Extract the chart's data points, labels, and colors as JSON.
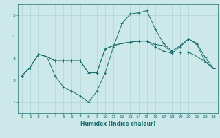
{
  "title": "",
  "xlabel": "Humidex (Indice chaleur)",
  "ylabel": "",
  "xlim": [
    -0.5,
    23.5
  ],
  "ylim": [
    0.5,
    5.5
  ],
  "yticks": [
    1,
    2,
    3,
    4,
    5
  ],
  "xticks": [
    0,
    1,
    2,
    3,
    4,
    5,
    6,
    7,
    8,
    9,
    10,
    11,
    12,
    13,
    14,
    15,
    16,
    17,
    18,
    19,
    20,
    21,
    22,
    23
  ],
  "bg_color": "#cce8e8",
  "grid_color": "#aacfcf",
  "line_color": "#1a6e6e",
  "line1_x": [
    0,
    1,
    2,
    3,
    4,
    5,
    6,
    7,
    8,
    9,
    10,
    11,
    12,
    13,
    14,
    15,
    16,
    17,
    18,
    19,
    20,
    21,
    22,
    23
  ],
  "line1_y": [
    2.2,
    2.6,
    3.2,
    3.1,
    2.2,
    1.7,
    1.5,
    1.3,
    1.0,
    1.5,
    2.35,
    3.55,
    4.6,
    5.05,
    5.1,
    5.2,
    4.35,
    3.7,
    3.35,
    3.6,
    3.9,
    3.7,
    3.05,
    2.55
  ],
  "line2_x": [
    0,
    1,
    2,
    3,
    4,
    5,
    6,
    7,
    8,
    9,
    10,
    11,
    12,
    13,
    14,
    15,
    16,
    17,
    18,
    19,
    20,
    21,
    22,
    23
  ],
  "line2_y": [
    2.2,
    2.6,
    3.2,
    3.1,
    2.9,
    2.9,
    2.9,
    2.9,
    2.35,
    2.35,
    3.45,
    3.6,
    3.7,
    3.75,
    3.8,
    3.8,
    3.65,
    3.6,
    3.3,
    3.3,
    3.3,
    3.1,
    2.85,
    2.55
  ],
  "line3_x": [
    0,
    1,
    2,
    3,
    4,
    5,
    6,
    7,
    8,
    9,
    10,
    11,
    12,
    13,
    14,
    15,
    16,
    17,
    18,
    19,
    20,
    21,
    22,
    23
  ],
  "line3_y": [
    2.2,
    2.6,
    3.2,
    3.1,
    2.9,
    2.9,
    2.9,
    2.9,
    2.35,
    2.35,
    3.45,
    3.6,
    3.7,
    3.75,
    3.8,
    3.8,
    3.55,
    3.35,
    3.25,
    3.55,
    3.9,
    3.65,
    2.85,
    2.55
  ],
  "xlabel_fontsize": 5.5,
  "tick_fontsize": 4.5,
  "linewidth": 0.7,
  "markersize": 2.5,
  "markeredgewidth": 0.6
}
